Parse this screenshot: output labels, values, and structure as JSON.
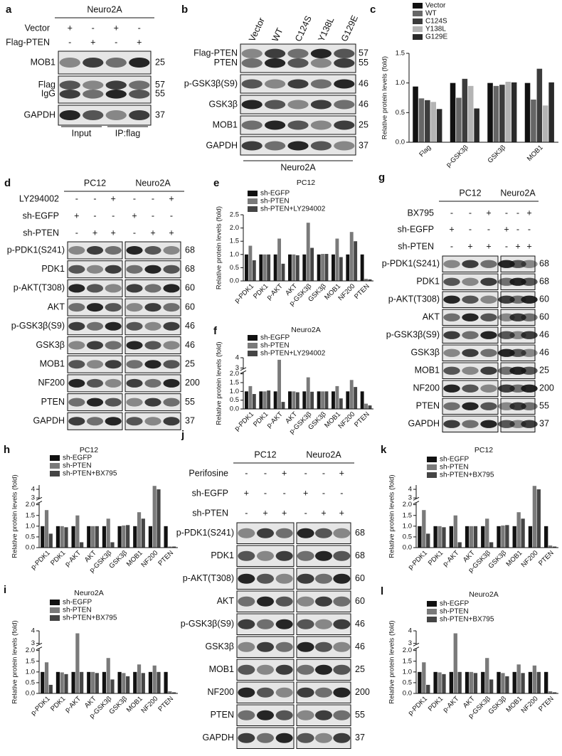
{
  "blots": [
    {
      "panel_label": "a",
      "groups": [
        "Neuro2A"
      ],
      "treatments": [
        {
          "name": "Vector",
          "signs": [
            "+",
            "-",
            "+",
            "-"
          ]
        },
        {
          "name": "Flag-PTEN",
          "signs": [
            "-",
            "+",
            "-",
            "+"
          ]
        }
      ],
      "rows": [
        {
          "labels": [
            "MOB1"
          ],
          "mw": [
            25
          ]
        },
        {
          "labels": [
            "Flag",
            "IgG"
          ],
          "mw": [
            57,
            55
          ]
        },
        {
          "labels": [
            "GAPDH"
          ],
          "mw": [
            37
          ]
        }
      ],
      "footer": [
        "Input",
        "IP:flag"
      ]
    },
    {
      "panel_label": "b",
      "lanes": [
        "Vector",
        "WT",
        "C124S",
        "Y138L",
        "G129E"
      ],
      "rows": [
        {
          "labels": [
            "Flag-PTEN",
            "PTEN"
          ],
          "mw": [
            57,
            55
          ]
        },
        {
          "labels": [
            "p-GSK3β(S9)"
          ],
          "mw": [
            46
          ]
        },
        {
          "labels": [
            "GSK3β"
          ],
          "mw": [
            46
          ]
        },
        {
          "labels": [
            "MOB1"
          ],
          "mw": [
            25
          ]
        },
        {
          "labels": [
            "GAPDH"
          ],
          "mw": [
            37
          ]
        }
      ],
      "footer": [
        "Neuro2A"
      ]
    },
    {
      "panel_label": "d",
      "groups": [
        "PC12",
        "Neuro2A"
      ],
      "treatments": [
        {
          "name": "LY294002",
          "signs": [
            "-",
            "-",
            "+",
            "-",
            "-",
            "+"
          ]
        },
        {
          "name": "sh-EGFP",
          "signs": [
            "+",
            "-",
            "-",
            "+",
            "-",
            "-"
          ]
        },
        {
          "name": "sh-PTEN",
          "signs": [
            "-",
            "+",
            "+",
            "-",
            "+",
            "+"
          ]
        }
      ],
      "rows": [
        {
          "labels": [
            "p-PDK1(S241)"
          ],
          "mw": [
            68
          ]
        },
        {
          "labels": [
            "PDK1"
          ],
          "mw": [
            68
          ]
        },
        {
          "labels": [
            "p-AKT(T308)"
          ],
          "mw": [
            60
          ]
        },
        {
          "labels": [
            "AKT"
          ],
          "mw": [
            60
          ]
        },
        {
          "labels": [
            "p-GSK3β(S9)"
          ],
          "mw": [
            46
          ]
        },
        {
          "labels": [
            "GSK3β"
          ],
          "mw": [
            46
          ]
        },
        {
          "labels": [
            "MOB1"
          ],
          "mw": [
            25
          ]
        },
        {
          "labels": [
            "NF200"
          ],
          "mw": [
            200
          ]
        },
        {
          "labels": [
            "PTEN"
          ],
          "mw": [
            55
          ]
        },
        {
          "labels": [
            "GAPDH"
          ],
          "mw": [
            37
          ]
        }
      ]
    },
    {
      "panel_label": "g",
      "groups": [
        "PC12",
        "Neuro2A"
      ],
      "treatments": [
        {
          "name": "BX795",
          "signs": [
            "-",
            "-",
            "+",
            "-",
            "-",
            "+"
          ]
        },
        {
          "name": "sh-EGFP",
          "signs": [
            "+",
            "-",
            "-",
            "+",
            "-",
            "-"
          ]
        },
        {
          "name": "sh-PTEN",
          "signs": [
            "-",
            "+",
            "+",
            "-",
            "+",
            "+"
          ]
        }
      ],
      "rows": [
        {
          "labels": [
            "p-PDK1(S241)"
          ],
          "mw": [
            68
          ]
        },
        {
          "labels": [
            "PDK1"
          ],
          "mw": [
            68
          ]
        },
        {
          "labels": [
            "p-AKT(T308)"
          ],
          "mw": [
            60
          ]
        },
        {
          "labels": [
            "AKT"
          ],
          "mw": [
            60
          ]
        },
        {
          "labels": [
            "p-GSK3β(S9)"
          ],
          "mw": [
            46
          ]
        },
        {
          "labels": [
            "GSK3β"
          ],
          "mw": [
            46
          ]
        },
        {
          "labels": [
            "MOB1"
          ],
          "mw": [
            25
          ]
        },
        {
          "labels": [
            "NF200"
          ],
          "mw": [
            200
          ]
        },
        {
          "labels": [
            "PTEN"
          ],
          "mw": [
            55
          ]
        },
        {
          "labels": [
            "GAPDH"
          ],
          "mw": [
            37
          ]
        }
      ]
    },
    {
      "panel_label": "j",
      "groups": [
        "PC12",
        "Neuro2A"
      ],
      "treatments": [
        {
          "name": "Perifosine",
          "signs": [
            "-",
            "-",
            "+",
            "-",
            "-",
            "+"
          ]
        },
        {
          "name": "sh-EGFP",
          "signs": [
            "+",
            "-",
            "-",
            "+",
            "-",
            "-"
          ]
        },
        {
          "name": "sh-PTEN",
          "signs": [
            "-",
            "+",
            "+",
            "-",
            "+",
            "+"
          ]
        }
      ],
      "rows": [
        {
          "labels": [
            "p-PDK1(S241)"
          ],
          "mw": [
            68
          ]
        },
        {
          "labels": [
            "PDK1"
          ],
          "mw": [
            68
          ]
        },
        {
          "labels": [
            "p-AKT(T308)"
          ],
          "mw": [
            60
          ]
        },
        {
          "labels": [
            "AKT"
          ],
          "mw": [
            60
          ]
        },
        {
          "labels": [
            "p-GSK3β(S9)"
          ],
          "mw": [
            46
          ]
        },
        {
          "labels": [
            "GSK3β"
          ],
          "mw": [
            46
          ]
        },
        {
          "labels": [
            "MOB1"
          ],
          "mw": [
            25
          ]
        },
        {
          "labels": [
            "NF200"
          ],
          "mw": [
            200
          ]
        },
        {
          "labels": [
            "PTEN"
          ],
          "mw": [
            55
          ]
        },
        {
          "labels": [
            "GAPDH"
          ],
          "mw": [
            37
          ]
        }
      ]
    }
  ],
  "chart_data": [
    {
      "type": "bar",
      "panel_label": "c",
      "y_label": "Relative protein levels (fold)",
      "categories": [
        "Flag",
        "p-GSK3β",
        "GSK3β",
        "MOB1"
      ],
      "series": [
        {
          "name": "Vector",
          "color": "#111111",
          "values": [
            0.94,
            1.0,
            1.0,
            1.0
          ]
        },
        {
          "name": "WT",
          "color": "#666666",
          "values": [
            0.74,
            0.75,
            0.95,
            0.72
          ]
        },
        {
          "name": "C124S",
          "color": "#3c3c3c",
          "values": [
            0.71,
            1.07,
            0.97,
            1.24
          ]
        },
        {
          "name": "Y138L",
          "color": "#b4b4b4",
          "values": [
            0.68,
            0.95,
            1.02,
            0.62
          ]
        },
        {
          "name": "G129E",
          "color": "#2a2a2a",
          "values": [
            0.56,
            0.57,
            1.01,
            1.01
          ]
        }
      ],
      "ylim": [
        0,
        1.5
      ],
      "yticks": [
        {
          "value": 0,
          "label": "0.0"
        },
        0.5,
        {
          "value": 1,
          "label": "1.0"
        },
        1.5
      ]
    },
    {
      "type": "bar",
      "panel_label": "e",
      "title": "PC12",
      "y_label": "Relative protein levels (fold)",
      "categories": [
        "p-PDK1",
        "PDK1",
        "p-AKT",
        "AKT",
        "p-GSK3β",
        "GSK3β",
        "MOB1",
        "NF200",
        "PTEN"
      ],
      "series": [
        {
          "name": "sh-EGFP",
          "color": "#111111",
          "values": [
            1,
            1,
            1,
            1,
            1,
            1,
            1,
            1,
            1
          ]
        },
        {
          "name": "sh-PTEN",
          "color": "#7a7a7a",
          "values": [
            1.33,
            1.0,
            1.6,
            1.0,
            2.2,
            1.02,
            1.6,
            1.85,
            0.08
          ]
        },
        {
          "name": "sh-PTEN+LY294002",
          "color": "#454545",
          "values": [
            0.78,
            1.0,
            0.65,
            0.97,
            1.25,
            1.02,
            0.9,
            1.5,
            0.06
          ]
        }
      ],
      "ylim": [
        0,
        2.5
      ],
      "yticks": [
        {
          "value": 0,
          "label": "0.0"
        },
        0.5,
        {
          "value": 1,
          "label": "1.0"
        },
        1.5,
        {
          "value": 2,
          "label": "2.0"
        },
        2.5
      ]
    },
    {
      "type": "bar",
      "panel_label": "f",
      "title": "Neuro2A",
      "y_label": "Relative protein levels (fold)",
      "categories": [
        "p-PDK1",
        "PDK1",
        "p-AKT",
        "AKT",
        "p-GSK3β",
        "GSK3β",
        "MOB1",
        "NF200",
        "PTEN"
      ],
      "series": [
        {
          "name": "sh-EGFP",
          "color": "#111111",
          "values": [
            1,
            1,
            1,
            1,
            1,
            1,
            1,
            1,
            1
          ]
        },
        {
          "name": "sh-PTEN",
          "color": "#7a7a7a",
          "values": [
            1.3,
            1.0,
            3.8,
            1.0,
            1.8,
            1.0,
            1.3,
            1.65,
            0.3
          ]
        },
        {
          "name": "sh-PTEN+LY294002",
          "color": "#454545",
          "values": [
            0.85,
            1.05,
            0.4,
            0.95,
            0.98,
            1.0,
            0.6,
            1.25,
            0.2
          ]
        }
      ],
      "ylim": [
        0,
        4
      ],
      "ybreak": [
        2.1,
        2.9
      ],
      "yticks": [
        {
          "value": 0,
          "label": "0.0"
        },
        0.5,
        {
          "value": 1,
          "label": "1.0"
        },
        1.5,
        {
          "value": 2,
          "label": "2.0"
        },
        3,
        4
      ]
    },
    {
      "type": "bar",
      "panel_label": "h",
      "title": "PC12",
      "y_label": "Relative protein levels (fold)",
      "categories": [
        "p-PDK1",
        "PDK1",
        "p-AKT",
        "AKT",
        "p-GSK3β",
        "GSK3β",
        "MOB1",
        "NF200",
        "PTEN"
      ],
      "series": [
        {
          "name": "sh-EGFP",
          "color": "#111111",
          "values": [
            1,
            1,
            1,
            1,
            1,
            1,
            1,
            1,
            1
          ]
        },
        {
          "name": "sh-PTEN",
          "color": "#7a7a7a",
          "values": [
            1.75,
            1.0,
            1.5,
            1.0,
            1.35,
            1.03,
            1.65,
            4.4,
            0.05
          ]
        },
        {
          "name": "sh-PTEN+BX795",
          "color": "#454545",
          "values": [
            0.65,
            0.95,
            0.25,
            1.0,
            0.25,
            1.05,
            1.35,
            4.0,
            0.05
          ]
        }
      ],
      "ylim": [
        0,
        4.5
      ],
      "ybreak": [
        2.1,
        2.9
      ],
      "yticks": [
        {
          "value": 0,
          "label": "0.0"
        },
        0.5,
        {
          "value": 1,
          "label": "1.0"
        },
        1.5,
        {
          "value": 2,
          "label": "2.0"
        },
        3,
        4
      ]
    },
    {
      "type": "bar",
      "panel_label": "i",
      "title": "Neuro2A",
      "y_label": "Relative protein levels (fold)",
      "categories": [
        "p-PDK1",
        "PDK1",
        "p-AKT",
        "AKT",
        "p-GSK3β",
        "GSK3β",
        "MOB1",
        "NF200",
        "PTEN"
      ],
      "series": [
        {
          "name": "sh-EGFP",
          "color": "#111111",
          "values": [
            1,
            1,
            1,
            1,
            1,
            1,
            1,
            1,
            1
          ]
        },
        {
          "name": "sh-PTEN",
          "color": "#7a7a7a",
          "values": [
            1.45,
            0.98,
            3.8,
            1.0,
            1.65,
            0.95,
            1.35,
            1.3,
            0.1
          ]
        },
        {
          "name": "sh-PTEN+BX795",
          "color": "#454545",
          "values": [
            0.4,
            0.9,
            1.0,
            0.95,
            0.65,
            0.8,
            0.95,
            1.0,
            0.05
          ]
        }
      ],
      "ylim": [
        0,
        4
      ],
      "ybreak": [
        2.1,
        2.9
      ],
      "yticks": [
        {
          "value": 0,
          "label": "0.0"
        },
        0.5,
        {
          "value": 1,
          "label": "1.0"
        },
        1.5,
        {
          "value": 2,
          "label": "2.0"
        },
        3,
        4
      ]
    },
    {
      "type": "bar",
      "panel_label": "k",
      "title": "PC12",
      "y_label": "Relative protein levels (fold)",
      "categories": [
        "p-PDK1",
        "PDK1",
        "p-AKT",
        "AKT",
        "p-GSK3β",
        "GSK3β",
        "MOB1",
        "NF200",
        "PTEN"
      ],
      "series": [
        {
          "name": "sh-EGFP",
          "color": "#111111",
          "values": [
            1,
            1,
            1,
            1,
            1,
            1,
            1,
            1,
            1
          ]
        },
        {
          "name": "sh-PTEN",
          "color": "#7a7a7a",
          "values": [
            1.75,
            1.0,
            1.5,
            1.0,
            1.35,
            1.03,
            1.65,
            4.4,
            0.1
          ]
        },
        {
          "name": "sh-PTEN+BX795",
          "color": "#454545",
          "values": [
            0.65,
            0.95,
            0.25,
            1.0,
            0.25,
            1.05,
            1.35,
            4.0,
            0.05
          ]
        }
      ],
      "ylim": [
        0,
        4.5
      ],
      "ybreak": [
        2.1,
        2.9
      ],
      "yticks": [
        {
          "value": 0,
          "label": "0.0"
        },
        0.5,
        {
          "value": 1,
          "label": "1.0"
        },
        1.5,
        {
          "value": 2,
          "label": "2.0"
        },
        3,
        4
      ]
    },
    {
      "type": "bar",
      "panel_label": "l",
      "title": "Neuro2A",
      "y_label": "Relative protein levels (fold)",
      "categories": [
        "p-PDK1",
        "PDK1",
        "p-AKT",
        "AKT",
        "p-GSK3β",
        "GSK3β",
        "MOB1",
        "NF200",
        "PTEN"
      ],
      "series": [
        {
          "name": "sh-EGFP",
          "color": "#111111",
          "values": [
            1,
            1,
            1,
            1,
            1,
            1,
            1,
            1,
            1
          ]
        },
        {
          "name": "sh-PTEN",
          "color": "#7a7a7a",
          "values": [
            1.45,
            0.98,
            3.8,
            1.0,
            1.65,
            0.95,
            1.35,
            1.3,
            0.1
          ]
        },
        {
          "name": "sh-PTEN+BX795",
          "color": "#454545",
          "values": [
            0.4,
            0.9,
            1.0,
            0.95,
            0.65,
            0.8,
            0.95,
            1.0,
            0.05
          ]
        }
      ],
      "ylim": [
        0,
        4
      ],
      "ybreak": [
        2.1,
        2.9
      ],
      "yticks": [
        {
          "value": 0,
          "label": "0.0"
        },
        0.5,
        {
          "value": 1,
          "label": "1.0"
        },
        1.5,
        {
          "value": 2,
          "label": "2.0"
        },
        3,
        4
      ]
    }
  ]
}
